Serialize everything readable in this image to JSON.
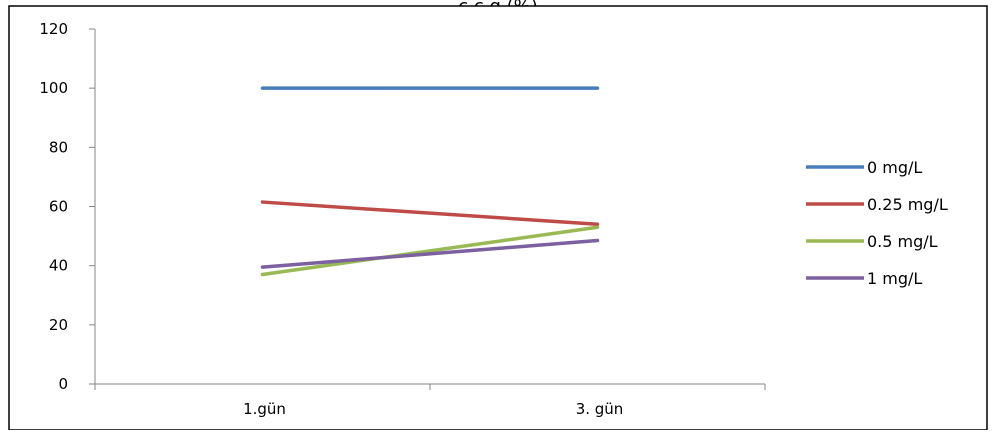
{
  "chart_data": {
    "type": "line",
    "title_fragment": "ç                     ç         g            (%)",
    "categories": [
      "1.gün",
      "3. gün"
    ],
    "ylim": [
      0,
      120
    ],
    "yticks": [
      "0",
      "20",
      "40",
      "60",
      "80",
      "100",
      "120"
    ],
    "grid": false,
    "legend_position": "right",
    "series": [
      {
        "name": "0 mg/L",
        "values": [
          100,
          100
        ],
        "color": "#4a7ebb"
      },
      {
        "name": "0.25 mg/L",
        "values": [
          61.5,
          54
        ],
        "color": "#be4b48"
      },
      {
        "name": "0.5 mg/L",
        "values": [
          37,
          53
        ],
        "color": "#98b954"
      },
      {
        "name": "1 mg/L",
        "values": [
          39.5,
          48.5
        ],
        "color": "#7d60a0"
      }
    ]
  }
}
